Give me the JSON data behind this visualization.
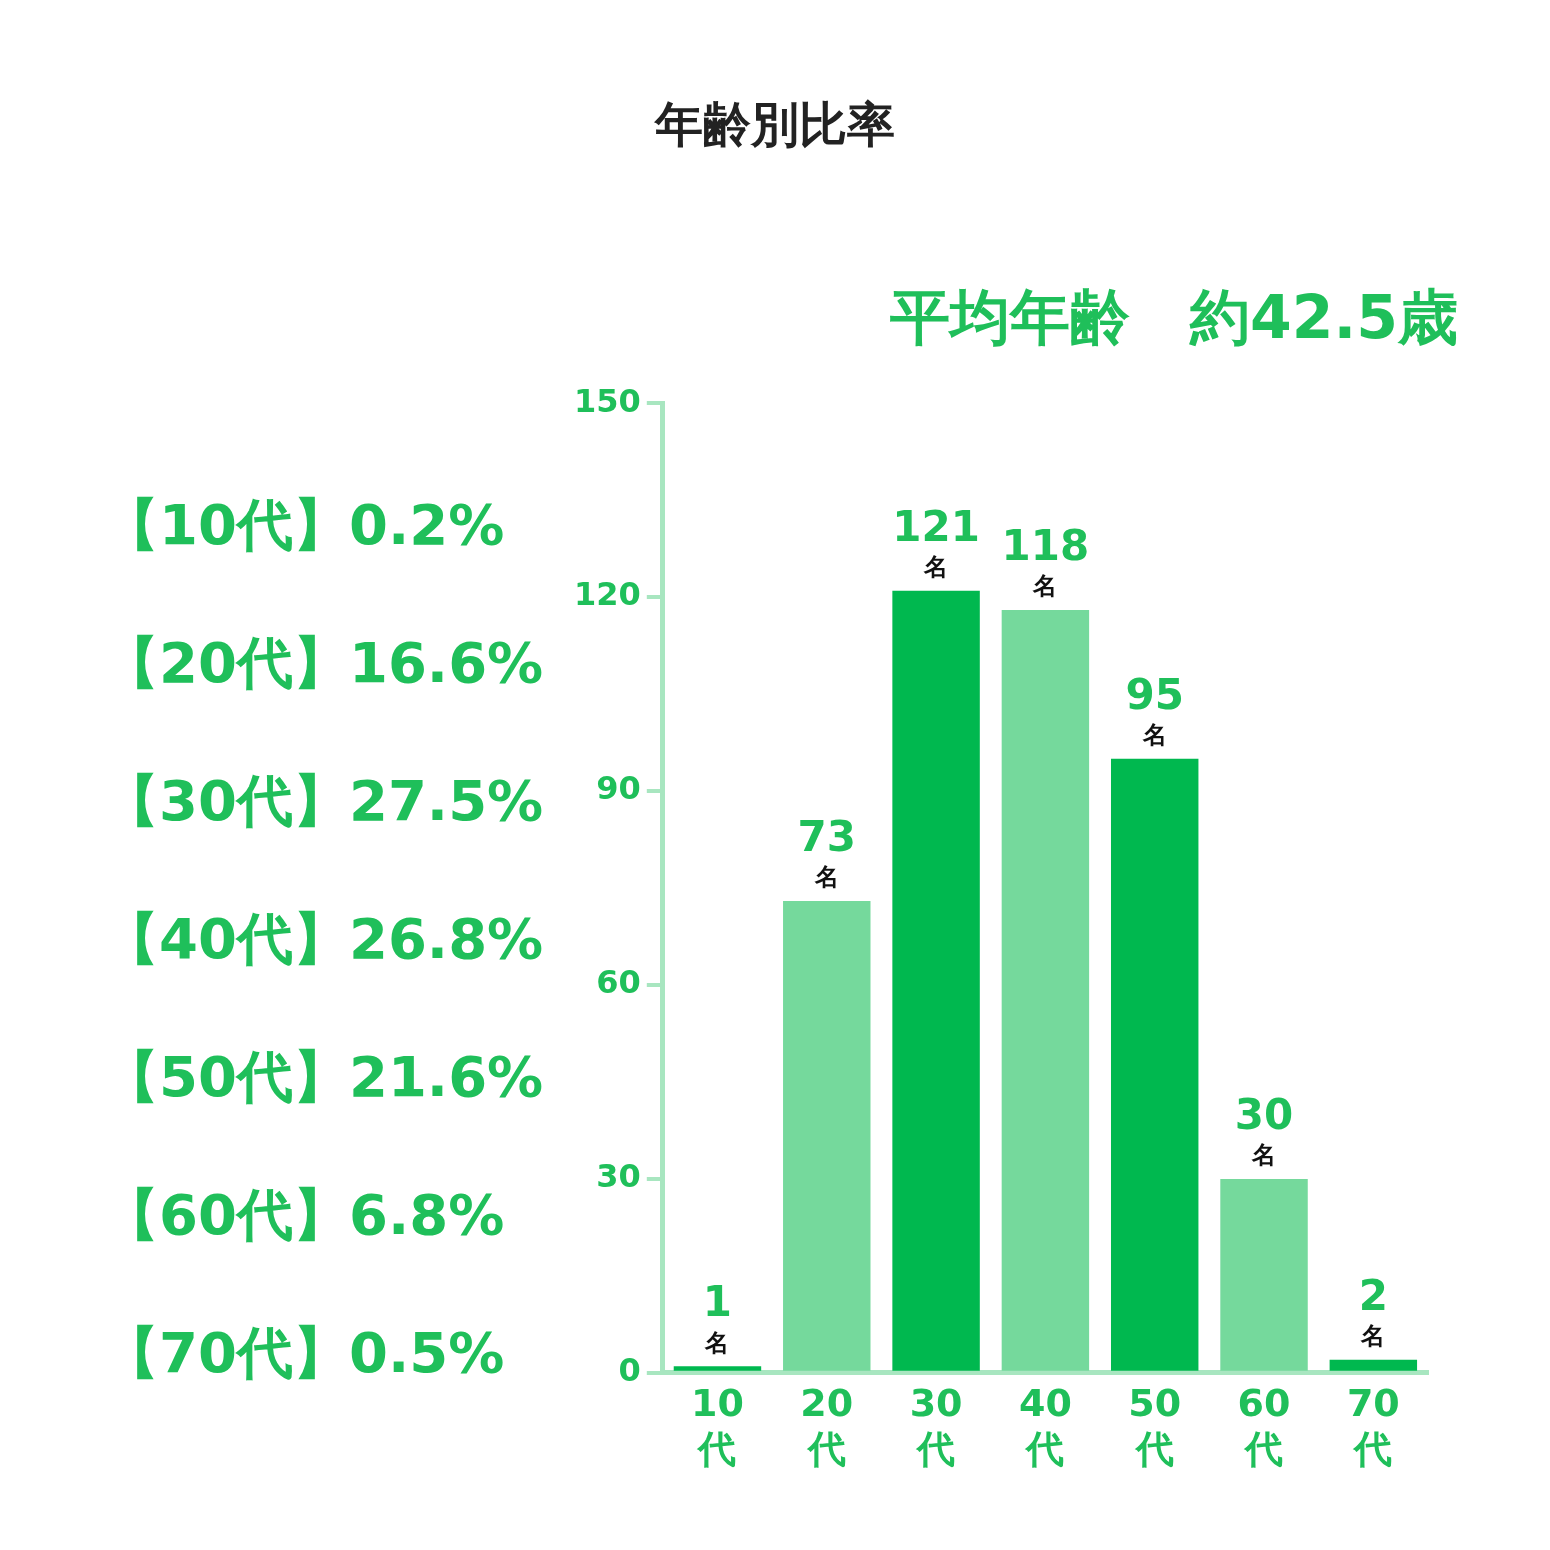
{
  "chart_data": {
    "type": "bar",
    "title": "年齢別比率",
    "subtitle": "平均年齢　約42.5歳",
    "categories": [
      "10代",
      "20代",
      "30代",
      "40代",
      "50代",
      "60代",
      "70代"
    ],
    "values": [
      1,
      73,
      121,
      118,
      95,
      30,
      2
    ],
    "colors": [
      "#00b84f",
      "#75d99c",
      "#00b84f",
      "#75d99c",
      "#00b84f",
      "#75d99c",
      "#00b84f"
    ],
    "value_labels": [
      "1名",
      "73名",
      "121名",
      "118名",
      "95名",
      "30名",
      "2名"
    ],
    "ylim": [
      0,
      150
    ],
    "yticks": [
      0,
      30,
      60,
      90,
      120,
      150
    ],
    "annotations": [
      "【10代】0.2%",
      "【20代】16.6%",
      "【30代】27.5%",
      "【40代】26.8%",
      "【50代】21.6%",
      "【60代】6.8%",
      "【70代】0.5%"
    ]
  }
}
